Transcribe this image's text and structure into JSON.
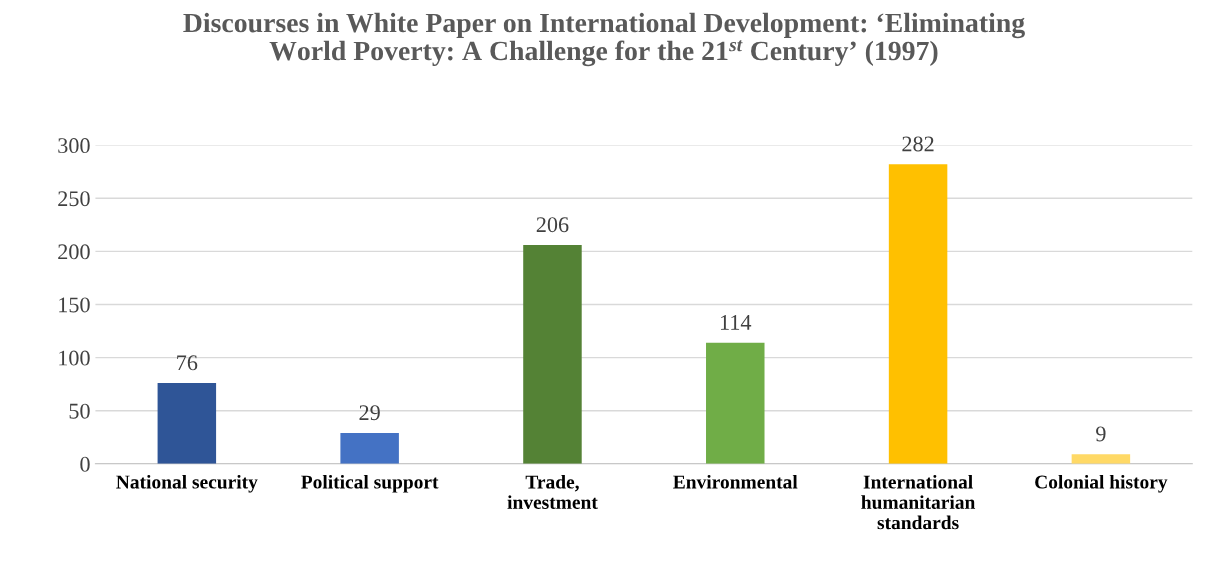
{
  "chart_data": {
    "type": "bar",
    "title": "Discourses in White Paper on International Development: ‘Eliminating\nWorld Poverty: A Challenge for the 21$^{st}$ Century’ (1997)",
    "categories": [
      "National security",
      "Political support",
      "Trade,\ninvestment",
      "Environmental",
      "International\nhumanitarian\nstandards",
      "Colonial history"
    ],
    "values": [
      76,
      29,
      206,
      114,
      282,
      9
    ],
    "colors": [
      "#2f5597",
      "#4472c4",
      "#548235",
      "#70ad47",
      "#ffc000",
      "#ffd966"
    ],
    "ylim": [
      0,
      300
    ],
    "yticks": [
      0,
      50,
      100,
      150,
      200,
      250,
      300
    ],
    "grid": "y",
    "data_labels": true,
    "legend": false
  }
}
